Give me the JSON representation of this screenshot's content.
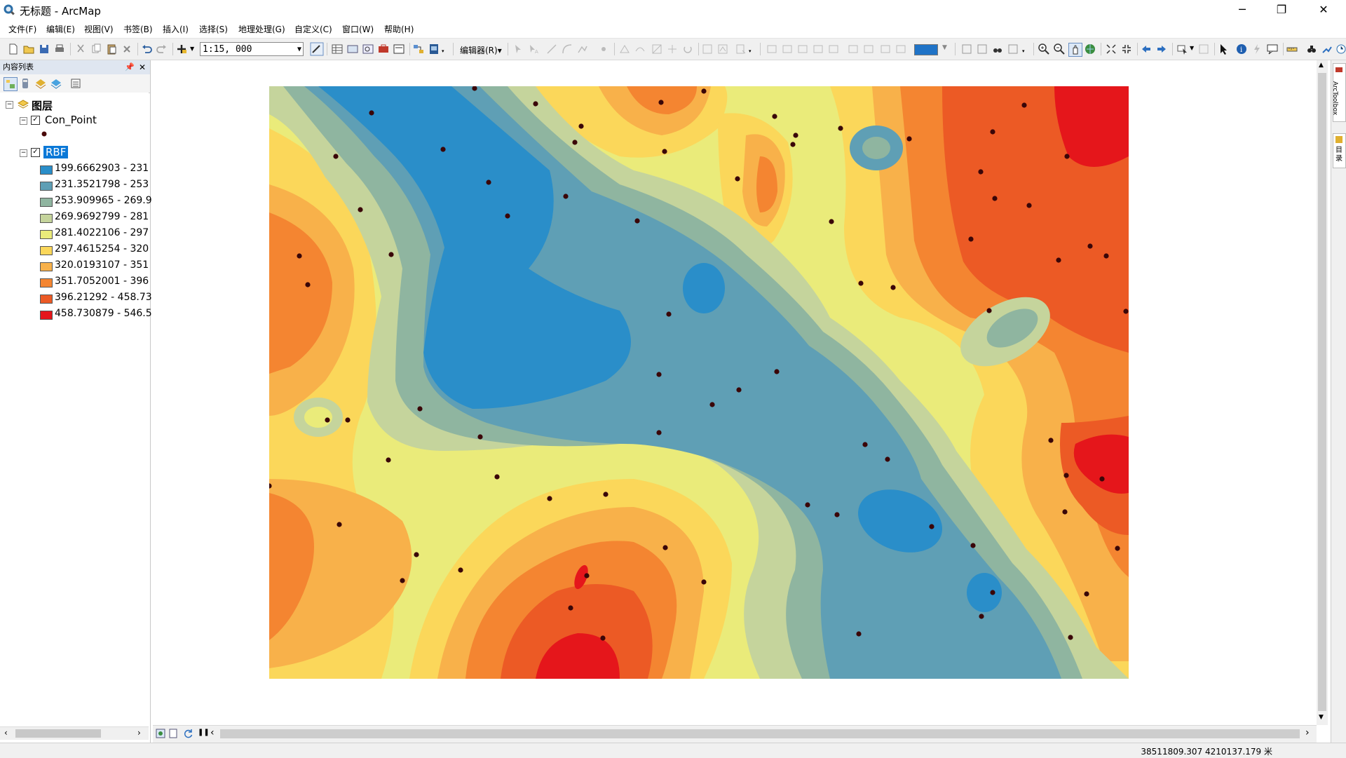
{
  "window": {
    "title": "无标题 - ArcMap"
  },
  "menu": [
    "文件(F)",
    "编辑(E)",
    "视图(V)",
    "书签(B)",
    "插入(I)",
    "选择(S)",
    "地理处理(G)",
    "自定义(C)",
    "窗口(W)",
    "帮助(H)"
  ],
  "toolbar": {
    "scale": "1:15, 000",
    "editor_label": "编辑器(R)▾"
  },
  "toc": {
    "title": "内容列表",
    "root_label": "图层",
    "layers": [
      {
        "name": "Con_Point"
      },
      {
        "name": "RBF",
        "selected": true
      }
    ],
    "legend": [
      {
        "label": "199.6662903 - 231",
        "color": "#2a8ec9"
      },
      {
        "label": "231.3521798 - 253",
        "color": "#5f9fb5"
      },
      {
        "label": "253.909965 - 269.9",
        "color": "#8fb5a0"
      },
      {
        "label": "269.9692799 - 281",
        "color": "#c5d49c"
      },
      {
        "label": "281.4022106 - 297",
        "color": "#eaeb7a"
      },
      {
        "label": "297.4615254 - 320",
        "color": "#fbd75a"
      },
      {
        "label": "320.0193107 - 351",
        "color": "#f8b14a"
      },
      {
        "label": "351.7052001 - 396",
        "color": "#f48531"
      },
      {
        "label": "396.21292 - 458.73",
        "color": "#ec5a25"
      },
      {
        "label": "458.730879 - 546.5",
        "color": "#e5161b"
      }
    ]
  },
  "status": {
    "coordinates": "38511809.307  4210137.179 米"
  },
  "right_dock": {
    "tab1": "ArcToolbox",
    "tab2": "目录"
  }
}
